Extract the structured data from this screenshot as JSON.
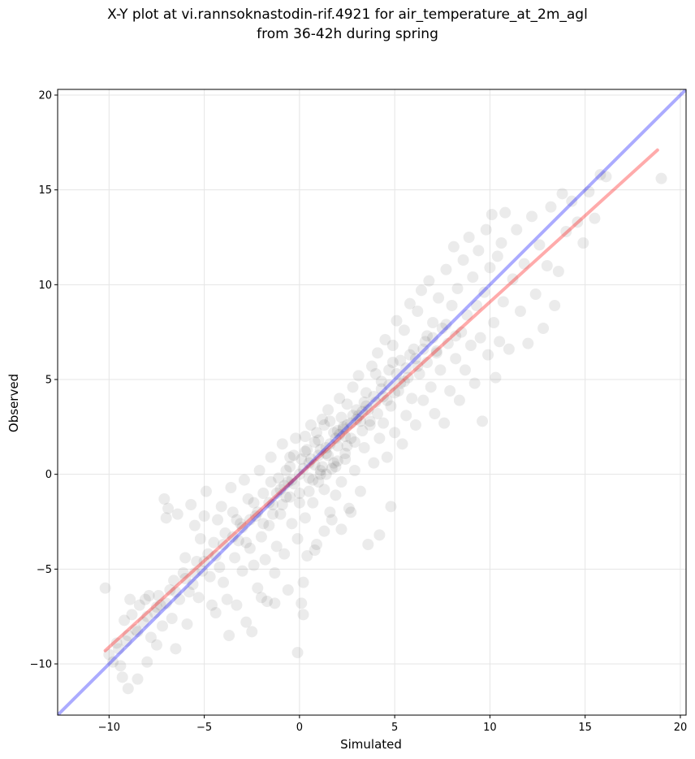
{
  "chart_data": {
    "type": "scatter",
    "title_line1": "X-Y plot at vi.rannsoknastodin-rif.4921 for air_temperature_at_2m_agl",
    "title_line2": "from 36-42h during spring",
    "xlabel": "Simulated",
    "ylabel": "Observed",
    "xlim": [
      -12.7,
      20.3
    ],
    "ylim": [
      -12.7,
      20.3
    ],
    "xticks": [
      -10,
      -5,
      0,
      5,
      10,
      15,
      20
    ],
    "yticks": [
      -10,
      -5,
      0,
      5,
      10,
      15,
      20
    ],
    "xtick_labels": [
      "−10",
      "−5",
      "0",
      "5",
      "10",
      "15",
      "20"
    ],
    "ytick_labels": [
      "−10",
      "−5",
      "0",
      "5",
      "10",
      "15",
      "20"
    ],
    "grid": true,
    "point_color": "#000000",
    "point_alpha": 0.08,
    "identity_line": {
      "color": "#0000ff",
      "from": [
        -12.7,
        -12.7
      ],
      "to": [
        20.3,
        20.3
      ]
    },
    "fit_line": {
      "color": "#ff0000",
      "from": [
        -10.2,
        -9.3
      ],
      "to": [
        18.8,
        17.1
      ]
    },
    "points": [
      [
        -10.2,
        -6.0
      ],
      [
        -10.0,
        -9.5
      ],
      [
        -9.8,
        -9.9
      ],
      [
        -9.6,
        -8.9
      ],
      [
        -9.4,
        -10.1
      ],
      [
        -9.3,
        -10.7
      ],
      [
        -9.0,
        -11.3
      ],
      [
        -9.2,
        -7.7
      ],
      [
        -8.9,
        -6.6
      ],
      [
        -8.8,
        -7.4
      ],
      [
        -8.6,
        -8.2
      ],
      [
        -8.5,
        -10.8
      ],
      [
        -8.4,
        -6.9
      ],
      [
        -8.2,
        -7.8
      ],
      [
        -8.0,
        -9.9
      ],
      [
        -7.9,
        -6.4
      ],
      [
        -7.8,
        -8.6
      ],
      [
        -7.6,
        -7.3
      ],
      [
        -7.5,
        -9.0
      ],
      [
        -7.3,
        -6.9
      ],
      [
        -7.2,
        -8.0
      ],
      [
        -7.1,
        -1.3
      ],
      [
        -7.0,
        -2.3
      ],
      [
        -6.9,
        -1.8
      ],
      [
        -6.8,
        -6.1
      ],
      [
        -6.7,
        -7.6
      ],
      [
        -6.6,
        -5.6
      ],
      [
        -6.5,
        -9.2
      ],
      [
        -6.4,
        -2.1
      ],
      [
        -6.3,
        -6.6
      ],
      [
        -6.1,
        -5.2
      ],
      [
        -6.0,
        -4.4
      ],
      [
        -5.9,
        -7.9
      ],
      [
        -5.8,
        -6.2
      ],
      [
        -5.7,
        -1.6
      ],
      [
        -5.6,
        -5.8
      ],
      [
        -5.5,
        -2.7
      ],
      [
        -5.4,
        -4.6
      ],
      [
        -5.3,
        -6.5
      ],
      [
        -5.2,
        -3.4
      ],
      [
        -5.1,
        -5.1
      ],
      [
        -5.0,
        -2.2
      ],
      [
        -4.9,
        -0.9
      ],
      [
        -4.8,
        -4.2
      ],
      [
        -4.7,
        -5.4
      ],
      [
        -4.6,
        -6.9
      ],
      [
        -4.5,
        -3.6
      ],
      [
        -4.4,
        -7.3
      ],
      [
        -4.3,
        -2.4
      ],
      [
        -4.2,
        -4.9
      ],
      [
        -4.1,
        -1.7
      ],
      [
        -4.0,
        -5.7
      ],
      [
        -3.9,
        -3.1
      ],
      [
        -3.8,
        -6.6
      ],
      [
        -3.7,
        -8.5
      ],
      [
        -3.6,
        -0.7
      ],
      [
        -3.5,
        -2.0
      ],
      [
        -3.4,
        -4.4
      ],
      [
        -3.3,
        -6.9
      ],
      [
        -3.2,
        -3.5
      ],
      [
        -3.1,
        -2.6
      ],
      [
        -3.0,
        -5.1
      ],
      [
        -2.9,
        -0.3
      ],
      [
        -2.8,
        -7.8
      ],
      [
        -2.7,
        -1.3
      ],
      [
        -2.6,
        -3.9
      ],
      [
        -2.5,
        -8.3
      ],
      [
        -2.4,
        -4.8
      ],
      [
        -2.3,
        -2.2
      ],
      [
        -2.2,
        -6.0
      ],
      [
        -2.1,
        0.2
      ],
      [
        -2.0,
        -3.3
      ],
      [
        -1.9,
        -1.0
      ],
      [
        -1.8,
        -4.5
      ],
      [
        -1.7,
        -6.7
      ],
      [
        -1.6,
        -2.7
      ],
      [
        -1.5,
        0.9
      ],
      [
        -1.4,
        -1.6
      ],
      [
        -1.3,
        -5.2
      ],
      [
        -1.2,
        -3.8
      ],
      [
        -1.1,
        -0.2
      ],
      [
        -1.0,
        -2.1
      ],
      [
        -0.9,
        1.6
      ],
      [
        -0.8,
        -4.2
      ],
      [
        -0.7,
        -1.2
      ],
      [
        -0.6,
        -6.1
      ],
      [
        -0.5,
        0.4
      ],
      [
        -0.4,
        -2.6
      ],
      [
        -0.3,
        -0.5
      ],
      [
        -0.2,
        1.9
      ],
      [
        -0.1,
        -3.4
      ],
      [
        0.0,
        -1.0
      ],
      [
        0.1,
        0.8
      ],
      [
        0.2,
        -5.7
      ],
      [
        0.3,
        -2.3
      ],
      [
        0.4,
        1.3
      ],
      [
        0.5,
        -0.2
      ],
      [
        0.6,
        2.6
      ],
      [
        0.7,
        -1.5
      ],
      [
        0.8,
        0.5
      ],
      [
        0.9,
        -3.7
      ],
      [
        1.0,
        1.8
      ],
      [
        1.1,
        0.0
      ],
      [
        1.2,
        2.9
      ],
      [
        1.3,
        -0.8
      ],
      [
        1.4,
        1.1
      ],
      [
        1.5,
        3.4
      ],
      [
        1.6,
        -2.0
      ],
      [
        1.7,
        0.3
      ],
      [
        1.8,
        2.2
      ],
      [
        1.9,
        -1.1
      ],
      [
        2.0,
        1.5
      ],
      [
        2.1,
        4.0
      ],
      [
        2.2,
        -0.4
      ],
      [
        2.3,
        2.5
      ],
      [
        2.4,
        0.8
      ],
      [
        2.5,
        3.7
      ],
      [
        2.6,
        -1.8
      ],
      [
        2.7,
        1.9
      ],
      [
        2.8,
        4.6
      ],
      [
        2.9,
        0.2
      ],
      [
        3.0,
        2.9
      ],
      [
        3.1,
        5.2
      ],
      [
        3.2,
        -0.9
      ],
      [
        3.3,
        3.3
      ],
      [
        3.4,
        1.4
      ],
      [
        3.5,
        4.3
      ],
      [
        3.6,
        -3.7
      ],
      [
        3.7,
        2.6
      ],
      [
        3.8,
        5.7
      ],
      [
        3.9,
        0.6
      ],
      [
        4.0,
        3.8
      ],
      [
        4.1,
        6.4
      ],
      [
        4.2,
        1.9
      ],
      [
        4.3,
        4.9
      ],
      [
        4.4,
        2.7
      ],
      [
        4.5,
        7.1
      ],
      [
        4.6,
        0.9
      ],
      [
        4.7,
        5.5
      ],
      [
        4.8,
        3.6
      ],
      [
        4.9,
        6.8
      ],
      [
        5.0,
        2.2
      ],
      [
        5.1,
        8.1
      ],
      [
        5.2,
        4.4
      ],
      [
        5.3,
        6.0
      ],
      [
        5.4,
        1.6
      ],
      [
        5.5,
        7.6
      ],
      [
        5.6,
        3.1
      ],
      [
        5.7,
        5.1
      ],
      [
        5.8,
        9.0
      ],
      [
        5.9,
        4.0
      ],
      [
        6.0,
        6.6
      ],
      [
        6.1,
        2.6
      ],
      [
        6.2,
        8.6
      ],
      [
        6.3,
        5.3
      ],
      [
        6.4,
        9.7
      ],
      [
        6.5,
        3.9
      ],
      [
        6.6,
        7.0
      ],
      [
        6.7,
        5.9
      ],
      [
        6.8,
        10.2
      ],
      [
        6.9,
        4.6
      ],
      [
        7.0,
        8.0
      ],
      [
        7.1,
        3.2
      ],
      [
        7.2,
        6.4
      ],
      [
        7.3,
        9.3
      ],
      [
        7.4,
        5.5
      ],
      [
        7.5,
        7.7
      ],
      [
        7.6,
        2.7
      ],
      [
        7.7,
        10.8
      ],
      [
        7.8,
        6.9
      ],
      [
        7.9,
        4.4
      ],
      [
        8.0,
        8.9
      ],
      [
        8.1,
        12.0
      ],
      [
        8.2,
        6.1
      ],
      [
        8.3,
        9.8
      ],
      [
        8.4,
        3.9
      ],
      [
        8.5,
        7.5
      ],
      [
        8.6,
        11.3
      ],
      [
        8.7,
        5.5
      ],
      [
        8.8,
        8.4
      ],
      [
        8.9,
        12.5
      ],
      [
        9.0,
        6.8
      ],
      [
        9.1,
        10.4
      ],
      [
        9.2,
        4.8
      ],
      [
        9.3,
        8.9
      ],
      [
        9.4,
        11.8
      ],
      [
        9.5,
        7.2
      ],
      [
        9.6,
        2.8
      ],
      [
        9.7,
        9.6
      ],
      [
        9.8,
        12.9
      ],
      [
        9.9,
        6.3
      ],
      [
        10.0,
        10.9
      ],
      [
        10.1,
        13.7
      ],
      [
        10.2,
        8.0
      ],
      [
        10.3,
        5.1
      ],
      [
        10.4,
        11.5
      ],
      [
        10.5,
        7.0
      ],
      [
        10.6,
        12.2
      ],
      [
        10.7,
        9.1
      ],
      [
        10.8,
        13.8
      ],
      [
        11.0,
        6.6
      ],
      [
        11.2,
        10.3
      ],
      [
        11.4,
        12.9
      ],
      [
        11.6,
        8.6
      ],
      [
        11.8,
        11.1
      ],
      [
        12.0,
        6.9
      ],
      [
        12.2,
        13.6
      ],
      [
        12.4,
        9.5
      ],
      [
        12.6,
        12.1
      ],
      [
        12.8,
        7.7
      ],
      [
        13.0,
        11.0
      ],
      [
        13.2,
        14.1
      ],
      [
        13.4,
        8.9
      ],
      [
        13.6,
        10.7
      ],
      [
        13.8,
        14.8
      ],
      [
        14.0,
        12.8
      ],
      [
        14.3,
        14.4
      ],
      [
        14.6,
        13.3
      ],
      [
        14.9,
        12.2
      ],
      [
        15.2,
        14.9
      ],
      [
        15.5,
        13.5
      ],
      [
        15.8,
        15.8
      ],
      [
        16.1,
        15.7
      ],
      [
        19.0,
        15.6
      ],
      [
        -0.1,
        -9.4
      ],
      [
        0.2,
        -7.4
      ],
      [
        0.1,
        -6.8
      ],
      [
        -8.1,
        -6.6
      ],
      [
        -7.4,
        -6.4
      ],
      [
        -9.1,
        -8.8
      ],
      [
        0.4,
        -4.3
      ],
      [
        0.8,
        -4.0
      ],
      [
        1.3,
        -3.0
      ],
      [
        1.7,
        -2.4
      ],
      [
        2.2,
        -2.9
      ],
      [
        2.7,
        -2.0
      ],
      [
        4.2,
        -3.2
      ],
      [
        4.8,
        -1.7
      ],
      [
        -1.3,
        -6.8
      ],
      [
        -2.0,
        -6.5
      ],
      [
        -0.5,
        0.9
      ],
      [
        0.3,
        1.2
      ],
      [
        0.8,
        1.7
      ],
      [
        1.2,
        0.4
      ],
      [
        1.5,
        1.0
      ],
      [
        2.0,
        2.3
      ],
      [
        2.4,
        2.0
      ],
      [
        2.8,
        3.1
      ],
      [
        3.2,
        2.8
      ],
      [
        3.6,
        3.4
      ],
      [
        -0.6,
        -0.4
      ],
      [
        0.0,
        0.0
      ],
      [
        0.5,
        0.6
      ],
      [
        1.0,
        1.0
      ],
      [
        1.4,
        1.4
      ],
      [
        1.9,
        1.9
      ],
      [
        2.3,
        2.4
      ],
      [
        2.7,
        2.7
      ],
      [
        3.1,
        3.1
      ],
      [
        3.5,
        3.6
      ],
      [
        -1.6,
        -1.5
      ],
      [
        -1.2,
        -1.0
      ],
      [
        -0.8,
        -0.6
      ],
      [
        -0.4,
        -0.3
      ],
      [
        0.2,
        0.3
      ],
      [
        0.6,
        0.8
      ],
      [
        1.1,
        1.3
      ],
      [
        1.6,
        1.6
      ],
      [
        2.1,
        2.1
      ],
      [
        2.5,
        2.6
      ],
      [
        3.0,
        3.4
      ],
      [
        3.4,
        3.8
      ],
      [
        3.9,
        4.1
      ],
      [
        4.3,
        4.5
      ],
      [
        4.7,
        4.7
      ],
      [
        5.1,
        5.3
      ],
      [
        5.6,
        5.6
      ],
      [
        6.1,
        6.1
      ],
      [
        6.5,
        6.6
      ],
      [
        7.0,
        7.2
      ],
      [
        -3.0,
        -2.8
      ],
      [
        -2.6,
        -2.4
      ],
      [
        -2.2,
        -2.0
      ],
      [
        -3.5,
        -3.3
      ],
      [
        -4.0,
        -3.7
      ],
      [
        -4.4,
        -4.3
      ],
      [
        -5.0,
        -4.6
      ],
      [
        -5.5,
        -5.2
      ],
      [
        -6.0,
        -5.5
      ],
      [
        -6.5,
        -6.2
      ],
      [
        -7.0,
        -6.8
      ],
      [
        -7.5,
        -7.0
      ],
      [
        -8.0,
        -7.5
      ],
      [
        -8.5,
        -8.3
      ],
      [
        -9.0,
        -8.5
      ],
      [
        -9.5,
        -9.2
      ],
      [
        0.9,
        2.2
      ],
      [
        1.3,
        2.6
      ],
      [
        1.8,
        0.6
      ],
      [
        2.2,
        3.0
      ],
      [
        0.7,
        -0.3
      ],
      [
        1.1,
        0.2
      ],
      [
        1.6,
        2.8
      ],
      [
        2.0,
        0.7
      ],
      [
        2.5,
        1.5
      ],
      [
        0.3,
        2.0
      ],
      [
        -0.3,
        1.0
      ],
      [
        -0.7,
        0.2
      ],
      [
        -1.0,
        -0.8
      ],
      [
        -1.5,
        -0.4
      ],
      [
        4.0,
        5.3
      ],
      [
        4.4,
        4.1
      ],
      [
        4.9,
        5.9
      ],
      [
        5.3,
        4.8
      ],
      [
        5.8,
        6.3
      ],
      [
        6.2,
        5.7
      ],
      [
        6.7,
        7.3
      ],
      [
        7.2,
        6.5
      ],
      [
        7.7,
        7.9
      ],
      [
        8.2,
        7.3
      ],
      [
        -0.9,
        -1.6
      ],
      [
        -0.5,
        -1.2
      ],
      [
        0.0,
        -1.5
      ],
      [
        0.5,
        -0.9
      ],
      [
        1.0,
        -0.4
      ],
      [
        1.4,
        0.0
      ],
      [
        1.9,
        0.4
      ],
      [
        2.4,
        1.1
      ],
      [
        2.9,
        1.7
      ],
      [
        3.3,
        2.3
      ],
      [
        3.7,
        2.8
      ],
      [
        4.1,
        3.2
      ],
      [
        4.6,
        3.9
      ],
      [
        5.0,
        4.3
      ],
      [
        5.5,
        4.9
      ],
      [
        -2.4,
        -1.5
      ],
      [
        -1.9,
        -2.6
      ],
      [
        -1.4,
        -2.1
      ],
      [
        -2.8,
        -3.6
      ],
      [
        -3.3,
        -2.4
      ]
    ]
  }
}
